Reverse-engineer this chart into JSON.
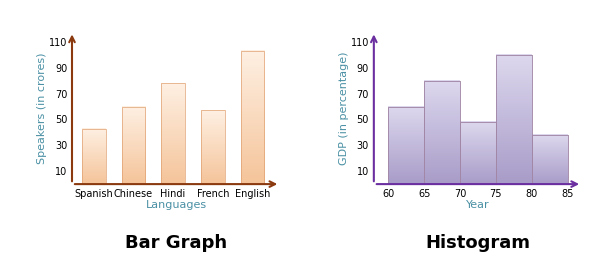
{
  "bar_categories": [
    "Spanish",
    "Chinese",
    "Hindi",
    "French",
    "English"
  ],
  "bar_values": [
    43,
    60,
    78,
    57,
    103
  ],
  "bar_color_bottom": "#F5C49A",
  "bar_color_top": "#FEF0E3",
  "bar_yticks": [
    10,
    30,
    50,
    70,
    90,
    110
  ],
  "bar_ylabel": "Speakers (in crores)",
  "bar_xlabel": "Languages",
  "bar_title": "Bar Graph",
  "bar_axis_color": "#8B3A0F",
  "bar_label_color": "#4A90A4",
  "hist_edges": [
    60,
    65,
    70,
    75,
    80,
    85
  ],
  "hist_values": [
    60,
    80,
    48,
    100,
    38
  ],
  "hist_color_bottom": "#A89CC8",
  "hist_color_top": "#DDD8EE",
  "hist_yticks": [
    10,
    30,
    50,
    70,
    90,
    110
  ],
  "hist_xticks": [
    60,
    65,
    70,
    75,
    80,
    85
  ],
  "hist_ylabel": "GDP (in percentage)",
  "hist_xlabel": "Year",
  "hist_title": "Histogram",
  "hist_axis_color": "#6B2FA0",
  "hist_label_color": "#4A90A4",
  "label_fontsize": 8,
  "tick_fontsize": 7,
  "title_fontsize": 13,
  "title_fontweight": "bold",
  "bg_color": "#ffffff"
}
